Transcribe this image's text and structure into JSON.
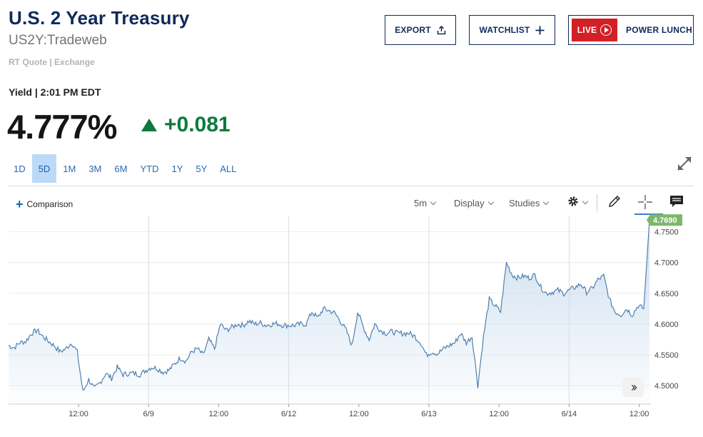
{
  "header": {
    "title": "U.S. 2 Year Treasury",
    "symbol": "US2Y:Tradeweb",
    "source": "RT Quote | Exchange"
  },
  "actions": {
    "export_label": "EXPORT",
    "watchlist_label": "WATCHLIST",
    "live_badge": "LIVE",
    "live_show": "POWER LUNCH"
  },
  "quote": {
    "yield_line": "Yield | 2:01 PM EDT",
    "price": "4.777%",
    "change": "+0.081",
    "direction": "up",
    "change_color": "#0b7a3e"
  },
  "ranges": [
    "1D",
    "5D",
    "1M",
    "3M",
    "6M",
    "YTD",
    "1Y",
    "5Y",
    "ALL"
  ],
  "active_range": "5D",
  "toolbar": {
    "comparison_label": "Comparison",
    "interval_label": "5m",
    "display_label": "Display",
    "studies_label": "Studies",
    "icons": [
      "gear-icon",
      "pencil-icon",
      "crosshair-icon",
      "comment-icon"
    ]
  },
  "chart_data": {
    "type": "area",
    "x_ticks": [
      "12:00",
      "6/9",
      "12:00",
      "6/12",
      "12:00",
      "6/13",
      "12:00",
      "6/14",
      "12:00"
    ],
    "y_ticks": [
      "4.5000",
      "4.5500",
      "4.6000",
      "4.6500",
      "4.7000",
      "4.7500"
    ],
    "ylim": [
      4.47,
      4.775
    ],
    "last_value_label": "4.7690",
    "last_value": 4.769,
    "line_color": "#4f80b0",
    "fill_color": "#c9dcee",
    "last_label_color": "#7cb86b",
    "grid": true,
    "series": [
      {
        "values": [
          4.565,
          4.562,
          4.57,
          4.572,
          4.585,
          4.59,
          4.58,
          4.572,
          4.565,
          4.555,
          4.56,
          4.57,
          4.555,
          4.49,
          4.51,
          4.495,
          4.505,
          4.52,
          4.512,
          4.53,
          4.518,
          4.52,
          4.52,
          4.518,
          4.525,
          4.53,
          4.528,
          4.522,
          4.525,
          4.535,
          4.545,
          4.54,
          4.555,
          4.56,
          4.55,
          4.575,
          4.56,
          4.6,
          4.59,
          4.595,
          4.6,
          4.598,
          4.605,
          4.6,
          4.602,
          4.598,
          4.6,
          4.601,
          4.598,
          4.598,
          4.598,
          4.6,
          4.6,
          4.62,
          4.61,
          4.625,
          4.622,
          4.618,
          4.605,
          4.59,
          4.565,
          4.62,
          4.595,
          4.575,
          4.6,
          4.59,
          4.585,
          4.588,
          4.585,
          4.585,
          4.585,
          4.58,
          4.57,
          4.55,
          4.555,
          4.552,
          4.56,
          4.565,
          4.57,
          4.585,
          4.57,
          4.58,
          4.5,
          4.58,
          4.64,
          4.63,
          4.62,
          4.7,
          4.68,
          4.675,
          4.678,
          4.675,
          4.68,
          4.66,
          4.65,
          4.652,
          4.655,
          4.65,
          4.655,
          4.66,
          4.665,
          4.652,
          4.658,
          4.672,
          4.678,
          4.64,
          4.62,
          4.615,
          4.625,
          4.615,
          4.63,
          4.625,
          4.769
        ]
      }
    ]
  }
}
